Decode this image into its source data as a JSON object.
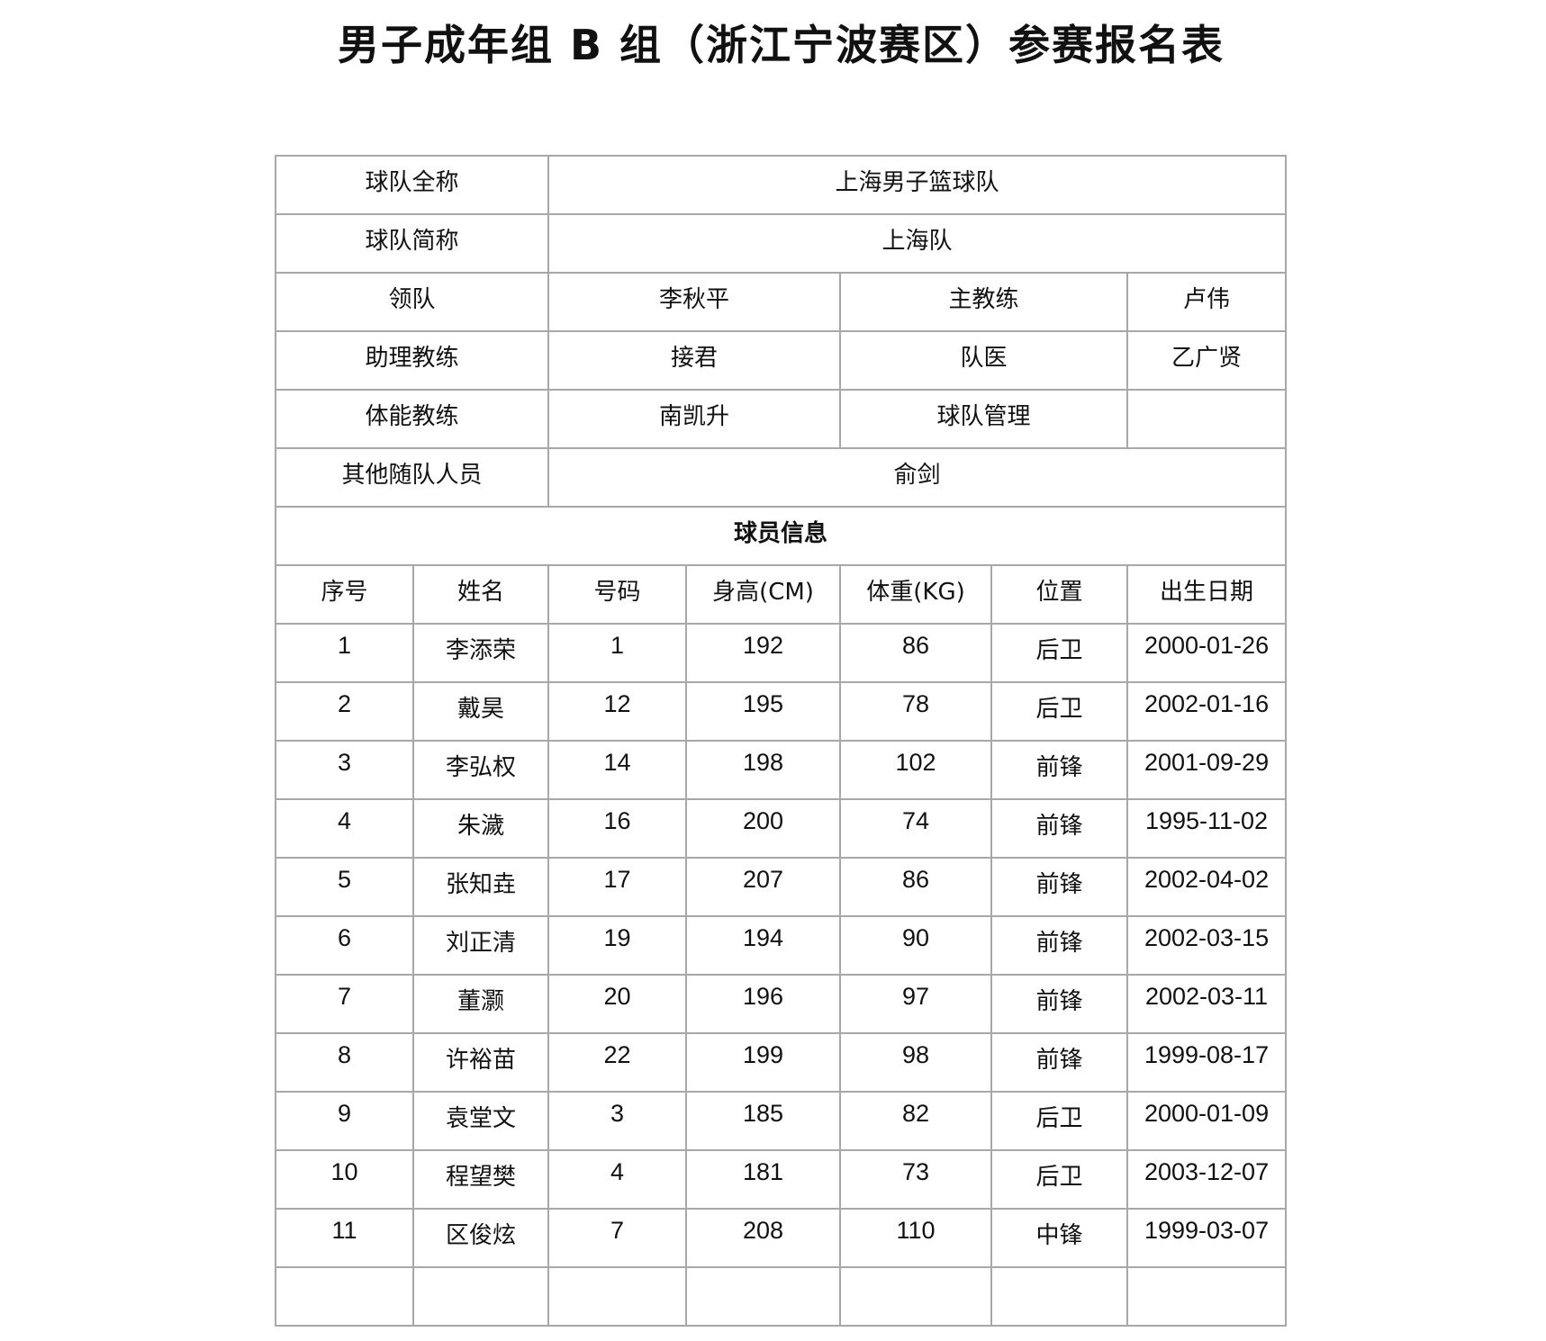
{
  "title": "男子成年组 B 组（浙江宁波赛区）参赛报名表",
  "team_info": {
    "full_name_label": "球队全称",
    "full_name": "上海男子篮球队",
    "short_name_label": "球队简称",
    "short_name": "上海队",
    "leader_label": "领队",
    "leader": "李秋平",
    "head_coach_label": "主教练",
    "head_coach": "卢伟",
    "assistant_coach_label": "助理教练",
    "assistant_coach": "接君",
    "doctor_label": "队医",
    "doctor": "乙广贤",
    "fitness_coach_label": "体能教练",
    "fitness_coach": "南凯升",
    "manager_label": "球队管理",
    "manager": "",
    "others_label": "其他随队人员",
    "others": "俞剑"
  },
  "players_section": "球员信息",
  "columns": [
    "序号",
    "姓名",
    "号码",
    "身高(CM)",
    "体重(KG)",
    "位置",
    "出生日期"
  ],
  "players": [
    [
      "1",
      "李添荣",
      "1",
      "192",
      "86",
      "后卫",
      "2000-01-26"
    ],
    [
      "2",
      "戴昊",
      "12",
      "195",
      "78",
      "后卫",
      "2002-01-16"
    ],
    [
      "3",
      "李弘权",
      "14",
      "198",
      "102",
      "前锋",
      "2001-09-29"
    ],
    [
      "4",
      "朱濊",
      "16",
      "200",
      "74",
      "前锋",
      "1995-11-02"
    ],
    [
      "5",
      "张知垚",
      "17",
      "207",
      "86",
      "前锋",
      "2002-04-02"
    ],
    [
      "6",
      "刘正清",
      "19",
      "194",
      "90",
      "前锋",
      "2002-03-15"
    ],
    [
      "7",
      "董灏",
      "20",
      "196",
      "97",
      "前锋",
      "2002-03-11"
    ],
    [
      "8",
      "许裕苗",
      "22",
      "199",
      "98",
      "前锋",
      "1999-08-17"
    ],
    [
      "9",
      "袁堂文",
      "3",
      "185",
      "82",
      "后卫",
      "2000-01-09"
    ],
    [
      "10",
      "程望樊",
      "4",
      "181",
      "73",
      "后卫",
      "2003-12-07"
    ],
    [
      "11",
      "区俊炫",
      "7",
      "208",
      "110",
      "中锋",
      "1999-03-07"
    ]
  ]
}
